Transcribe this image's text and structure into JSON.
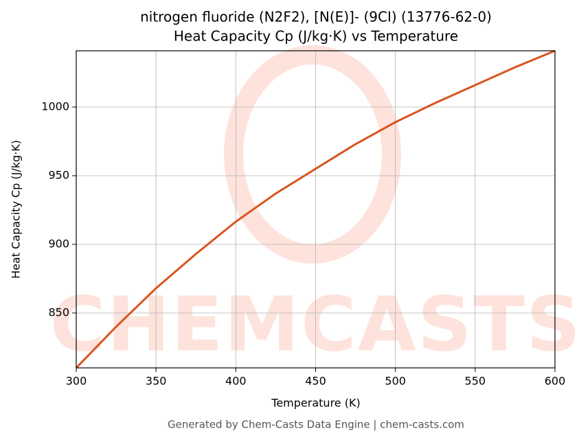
{
  "chart_data": {
    "type": "line",
    "title": "nitrogen fluoride (N2F2), [N(E)]- (9CI) (13776-62-0)",
    "subtitle": "Heat Capacity Cp (J/kg·K) vs Temperature",
    "x_label": "Temperature (K)",
    "y_label": "Heat Capacity Cp (J/kg·K)",
    "watermark": "CHEMCASTS",
    "footer": "Generated by Chem-Casts Data Engine | chem-casts.com",
    "x": [
      300,
      325,
      350,
      375,
      400,
      425,
      450,
      475,
      500,
      525,
      550,
      575,
      600
    ],
    "series": [
      {
        "name": "Heat Capacity Cp",
        "color": "#d9541e",
        "values": [
          810,
          840,
          868,
          893,
          916.5,
          937,
          955,
          973,
          989,
          1003,
          1016,
          1029,
          1041
        ]
      }
    ],
    "xlim": [
      300,
      600
    ],
    "xticks": [
      300,
      350,
      400,
      450,
      500,
      550,
      600
    ],
    "ylim": [
      810,
      1041
    ],
    "yticks": [
      850,
      900,
      950,
      1000
    ],
    "grid": true
  }
}
